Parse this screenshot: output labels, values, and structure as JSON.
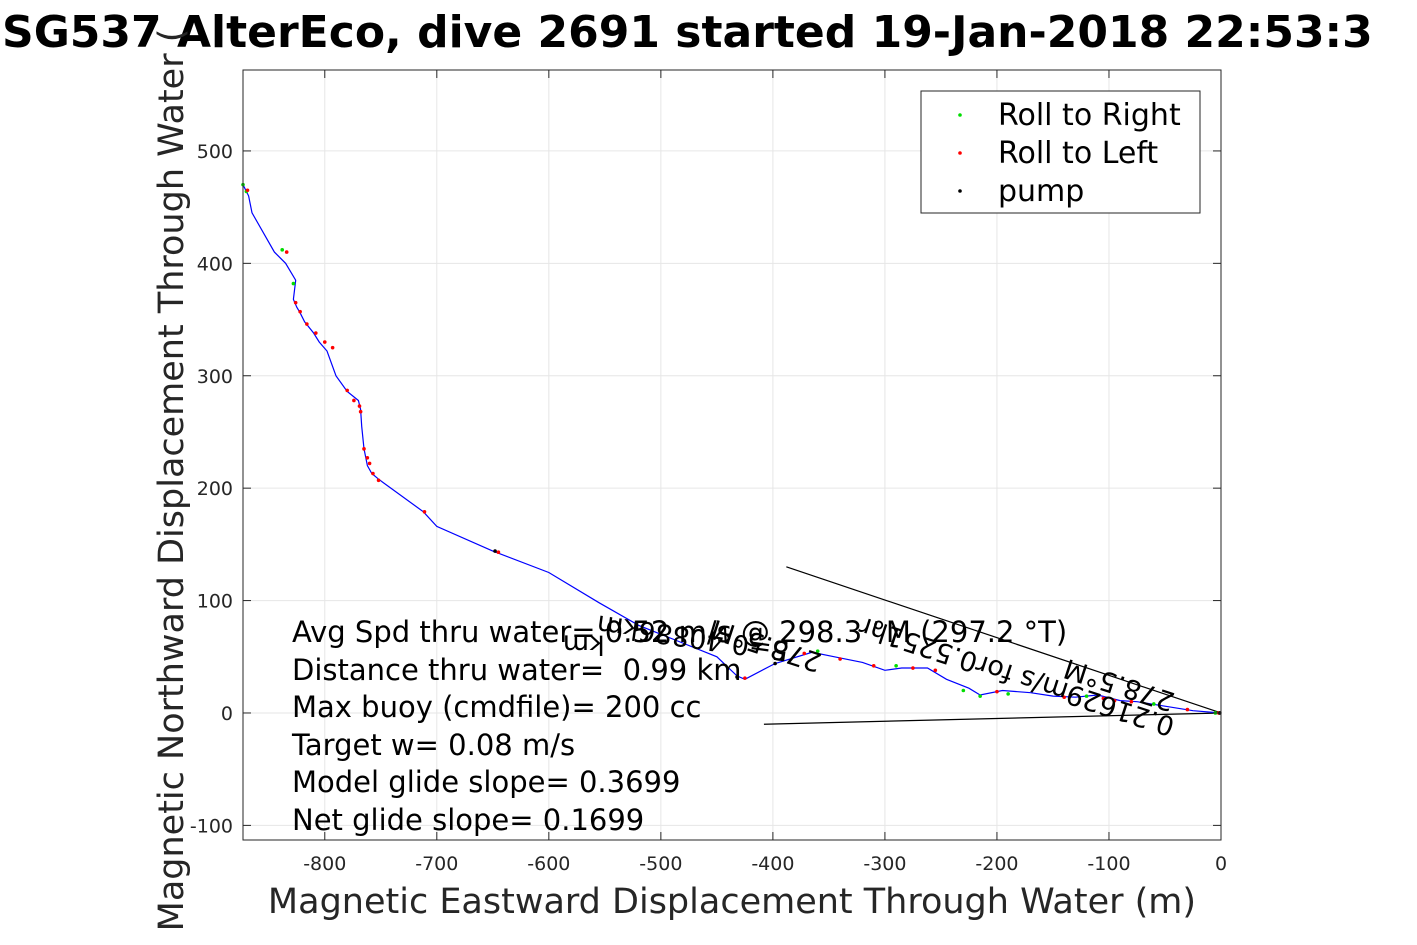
{
  "chart_data": {
    "type": "scatter",
    "title": "SG537 AlterEco, dive 2691 started 19-Jan-2018 22:53:3",
    "xlabel": "Magnetic Eastward Displacement Through Water (m)",
    "ylabel": "Magnetic Northward Displacement Through Water (",
    "xlim": [
      -873,
      0
    ],
    "ylim": [
      -113,
      572
    ],
    "xticks": [
      -800,
      -700,
      -600,
      -500,
      -400,
      -300,
      -200,
      -100,
      0
    ],
    "yticks": [
      -100,
      0,
      100,
      200,
      300,
      400,
      500
    ],
    "grid": true,
    "legend": {
      "placement": "top-right",
      "entries": [
        {
          "label": "Roll to Right",
          "color": "#00dd00"
        },
        {
          "label": "Roll to Left",
          "color": "#ff0000"
        },
        {
          "label": "pump",
          "color": "#000000"
        }
      ]
    },
    "track": {
      "name": "path",
      "color": "#0000ff",
      "points": [
        [
          0,
          0
        ],
        [
          -25,
          2
        ],
        [
          -50,
          6
        ],
        [
          -75,
          10
        ],
        [
          -90,
          11
        ],
        [
          -110,
          16
        ],
        [
          -130,
          14
        ],
        [
          -150,
          15
        ],
        [
          -170,
          18
        ],
        [
          -195,
          20
        ],
        [
          -215,
          16
        ],
        [
          -225,
          22
        ],
        [
          -245,
          30
        ],
        [
          -262,
          40
        ],
        [
          -285,
          40
        ],
        [
          -300,
          38
        ],
        [
          -320,
          45
        ],
        [
          -345,
          50
        ],
        [
          -365,
          54
        ],
        [
          -398,
          44
        ],
        [
          -425,
          30
        ],
        [
          -432,
          33
        ],
        [
          -450,
          50
        ],
        [
          -485,
          64
        ],
        [
          -520,
          78
        ],
        [
          -555,
          98
        ],
        [
          -600,
          125
        ],
        [
          -650,
          144
        ],
        [
          -700,
          166
        ],
        [
          -712,
          179
        ],
        [
          -752,
          208
        ],
        [
          -758,
          213
        ],
        [
          -762,
          220
        ],
        [
          -765,
          235
        ],
        [
          -767,
          255
        ],
        [
          -768,
          270
        ],
        [
          -770,
          278
        ],
        [
          -780,
          286
        ],
        [
          -790,
          300
        ],
        [
          -798,
          322
        ],
        [
          -805,
          330
        ],
        [
          -810,
          338
        ],
        [
          -818,
          348
        ],
        [
          -822,
          356
        ],
        [
          -825,
          361
        ],
        [
          -828,
          368
        ],
        [
          -826,
          385
        ],
        [
          -835,
          400
        ],
        [
          -845,
          410
        ],
        [
          -865,
          445
        ],
        [
          -868,
          460
        ],
        [
          -873,
          470
        ]
      ]
    },
    "roll_right_points": [
      [
        -5,
        0
      ],
      [
        -60,
        8
      ],
      [
        -120,
        15
      ],
      [
        -190,
        17
      ],
      [
        -215,
        15
      ],
      [
        -230,
        20
      ],
      [
        -290,
        42
      ],
      [
        -360,
        55
      ],
      [
        -828,
        382
      ],
      [
        -838,
        412
      ],
      [
        -870,
        464
      ],
      [
        -873,
        470
      ]
    ],
    "roll_left_points": [
      [
        -2,
        0
      ],
      [
        -30,
        3
      ],
      [
        -80,
        10
      ],
      [
        -95,
        11
      ],
      [
        -105,
        13
      ],
      [
        -140,
        14
      ],
      [
        -200,
        19
      ],
      [
        -255,
        38
      ],
      [
        -275,
        40
      ],
      [
        -310,
        42
      ],
      [
        -340,
        48
      ],
      [
        -372,
        53
      ],
      [
        -425,
        31
      ],
      [
        -645,
        143
      ],
      [
        -711,
        179
      ],
      [
        -752,
        207
      ],
      [
        -757,
        213
      ],
      [
        -760,
        222
      ],
      [
        -762,
        227
      ],
      [
        -765,
        235
      ],
      [
        -768,
        268
      ],
      [
        -769,
        273
      ],
      [
        -774,
        278
      ],
      [
        -780,
        287
      ],
      [
        -793,
        325
      ],
      [
        -800,
        330
      ],
      [
        -808,
        338
      ],
      [
        -816,
        346
      ],
      [
        -822,
        357
      ],
      [
        -826,
        365
      ],
      [
        -834,
        410
      ],
      [
        -869,
        465
      ]
    ],
    "pump_points": [
      [
        -1,
        0
      ],
      [
        -648,
        144
      ],
      [
        -398,
        44
      ],
      [
        -432,
        32
      ]
    ],
    "annotation_lines": [
      {
        "from": [
          0,
          0
        ],
        "to": [
          -388,
          130
        ],
        "color": "#000000"
      },
      {
        "from": [
          0,
          0
        ],
        "to": [
          -408,
          -10
        ],
        "color": "#000000"
      }
    ],
    "stats_lines": [
      "Avg Spd thru water= 0.52 m/s @ 298.3 °M (297.2 °T)",
      "Distance thru water=  0.99 km",
      "Max buoy (cmdfile)= 200 cc",
      "Target w= 0.08 m/s",
      "Model glide slope= 0.3699",
      "Net glide slope= 0.1699"
    ],
    "rotated_annotations": [
      {
        "text": "0.21629m/s for0.5251hr",
        "angle": 198,
        "anchor": [
          -40,
          -5
        ]
      },
      {
        "text": "278.5°M",
        "angle": 198,
        "anchor": [
          -40,
          17
        ]
      },
      {
        "text": "278.5°M",
        "angle": 198,
        "anchor": [
          -355,
          52
        ]
      },
      {
        "text": "5=0.40886km",
        "angle": 188,
        "anchor": [
          -385,
          63
        ]
      },
      {
        "text": "km",
        "angle": 180,
        "anchor": [
          -550,
          69
        ]
      }
    ]
  }
}
